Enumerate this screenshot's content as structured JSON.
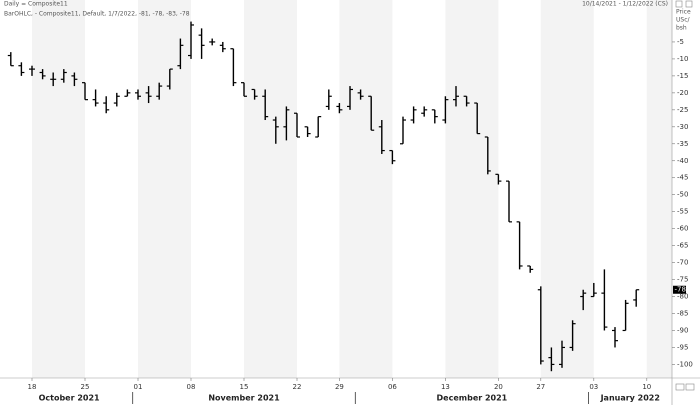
{
  "chart_data": {
    "type": "ohlc",
    "title": "Daily = Composite11",
    "date_range": "10/14/2021 - 1/12/2022 (CS)",
    "legend_text": "BarOHLC, - Composite11, Default, 1/7/2022, -81, -78, -83, -78",
    "ylabel": [
      "Price",
      "USc/",
      "bsh"
    ],
    "categories": [
      "2021-10-14",
      "2021-10-15",
      "2021-10-18",
      "2021-10-19",
      "2021-10-20",
      "2021-10-21",
      "2021-10-22",
      "2021-10-25",
      "2021-10-26",
      "2021-10-27",
      "2021-10-28",
      "2021-10-29",
      "2021-11-01",
      "2021-11-02",
      "2021-11-03",
      "2021-11-04",
      "2021-11-05",
      "2021-11-08",
      "2021-11-09",
      "2021-11-10",
      "2021-11-11",
      "2021-11-12",
      "2021-11-15",
      "2021-11-16",
      "2021-11-17",
      "2021-11-18",
      "2021-11-19",
      "2021-11-22",
      "2021-11-23",
      "2021-11-24",
      "2021-11-26",
      "2021-11-29",
      "2021-11-30",
      "2021-12-01",
      "2021-12-02",
      "2021-12-03",
      "2021-12-06",
      "2021-12-07",
      "2021-12-08",
      "2021-12-09",
      "2021-12-10",
      "2021-12-13",
      "2021-12-14",
      "2021-12-15",
      "2021-12-16",
      "2021-12-17",
      "2021-12-20",
      "2021-12-21",
      "2021-12-22",
      "2021-12-23",
      "2021-12-27",
      "2021-12-28",
      "2021-12-29",
      "2021-12-30",
      "2021-12-31",
      "2022-01-03",
      "2022-01-04",
      "2022-01-05",
      "2022-01-06",
      "2022-01-07"
    ],
    "series": [
      {
        "name": "Composite11",
        "color": "#000000",
        "open": [
          -9,
          -12,
          -13,
          -14,
          -16,
          -16,
          -15,
          -17,
          -22,
          -23,
          -23,
          -21,
          -20,
          -20,
          -21,
          -18,
          -12,
          -9,
          -3,
          -5,
          -6,
          -7,
          -17,
          -19,
          -21,
          -28,
          -30,
          -26,
          -30,
          -33,
          -24,
          -24,
          -24,
          -20,
          -21,
          -30,
          -37,
          -35,
          -28,
          -26,
          -25,
          -28,
          -22,
          -21,
          -23,
          -33,
          -44,
          -46,
          -58,
          -71,
          -78,
          -98,
          -100,
          -95,
          -80,
          -80,
          -79,
          -90,
          -90,
          -81
        ],
        "high": [
          -8,
          -11,
          -12,
          -13,
          -14,
          -13,
          -14,
          -17,
          -19,
          -21,
          -20,
          -19,
          -19,
          -18,
          -17,
          -13,
          -4,
          1,
          -1,
          -4,
          -5,
          -7,
          -17,
          -19,
          -19,
          -27,
          -24,
          -26,
          -30,
          -27,
          -19,
          -23,
          -18,
          -19,
          -21,
          -28,
          -37,
          -27,
          -24,
          -24,
          -25,
          -21,
          -18,
          -21,
          -23,
          -33,
          -44,
          -46,
          -58,
          -71,
          -77,
          -95,
          -93,
          -87,
          -78,
          -76,
          -72,
          -89,
          -81,
          -78
        ],
        "low": [
          -12,
          -15,
          -15,
          -16,
          -18,
          -17,
          -18,
          -22,
          -24,
          -26,
          -24,
          -21,
          -22,
          -23,
          -22,
          -19,
          -13,
          -10,
          -10,
          -6,
          -8,
          -18,
          -21,
          -22,
          -28,
          -35,
          -34,
          -33,
          -33,
          -33,
          -25,
          -26,
          -25,
          -22,
          -31,
          -38,
          -41,
          -35,
          -29,
          -27,
          -29,
          -29,
          -24,
          -24,
          -32,
          -44,
          -47,
          -58,
          -72,
          -73,
          -100,
          -102,
          -101,
          -96,
          -84,
          -80,
          -90,
          -95,
          -90,
          -83
        ],
        "close": [
          -12,
          -14,
          -13,
          -15,
          -16,
          -14,
          -16,
          -22,
          -23,
          -25,
          -21,
          -20,
          -21,
          -21,
          -18,
          -13,
          -6,
          0,
          -6,
          -5,
          -7,
          -17,
          -21,
          -21,
          -27,
          -30,
          -25,
          -33,
          -32,
          -27,
          -21,
          -25,
          -19,
          -21,
          -31,
          -37,
          -40,
          -28,
          -25,
          -25,
          -27,
          -22,
          -21,
          -23,
          -32,
          -43,
          -46,
          -58,
          -71,
          -72,
          -99,
          -100,
          -95,
          -88,
          -79,
          -79,
          -89,
          -93,
          -82,
          -78
        ]
      }
    ],
    "ylim": [
      -104,
      5
    ],
    "yticks": [
      -5,
      -10,
      -15,
      -20,
      -25,
      -30,
      -35,
      -40,
      -45,
      -50,
      -55,
      -60,
      -65,
      -70,
      -75,
      -80,
      -85,
      -90,
      -95,
      -100
    ],
    "xticks": [
      {
        "value": "2021-10-18",
        "label": "18"
      },
      {
        "value": "2021-10-25",
        "label": "25"
      },
      {
        "value": "2021-11-01",
        "label": "01"
      },
      {
        "value": "2021-11-08",
        "label": "08"
      },
      {
        "value": "2021-11-15",
        "label": "15"
      },
      {
        "value": "2021-11-22",
        "label": "22"
      },
      {
        "value": "2021-11-29",
        "label": "29"
      },
      {
        "value": "2021-12-06",
        "label": "06"
      },
      {
        "value": "2021-12-13",
        "label": "13"
      },
      {
        "value": "2021-12-20",
        "label": "20"
      },
      {
        "value": "2021-12-27",
        "label": "27"
      },
      {
        "value": "2022-01-03",
        "label": "03"
      },
      {
        "value": "2022-01-10",
        "label": "10"
      }
    ],
    "months": [
      "October 2021",
      "November 2021",
      "December 2021",
      "January 2022"
    ],
    "shaded_weeks": true
  }
}
